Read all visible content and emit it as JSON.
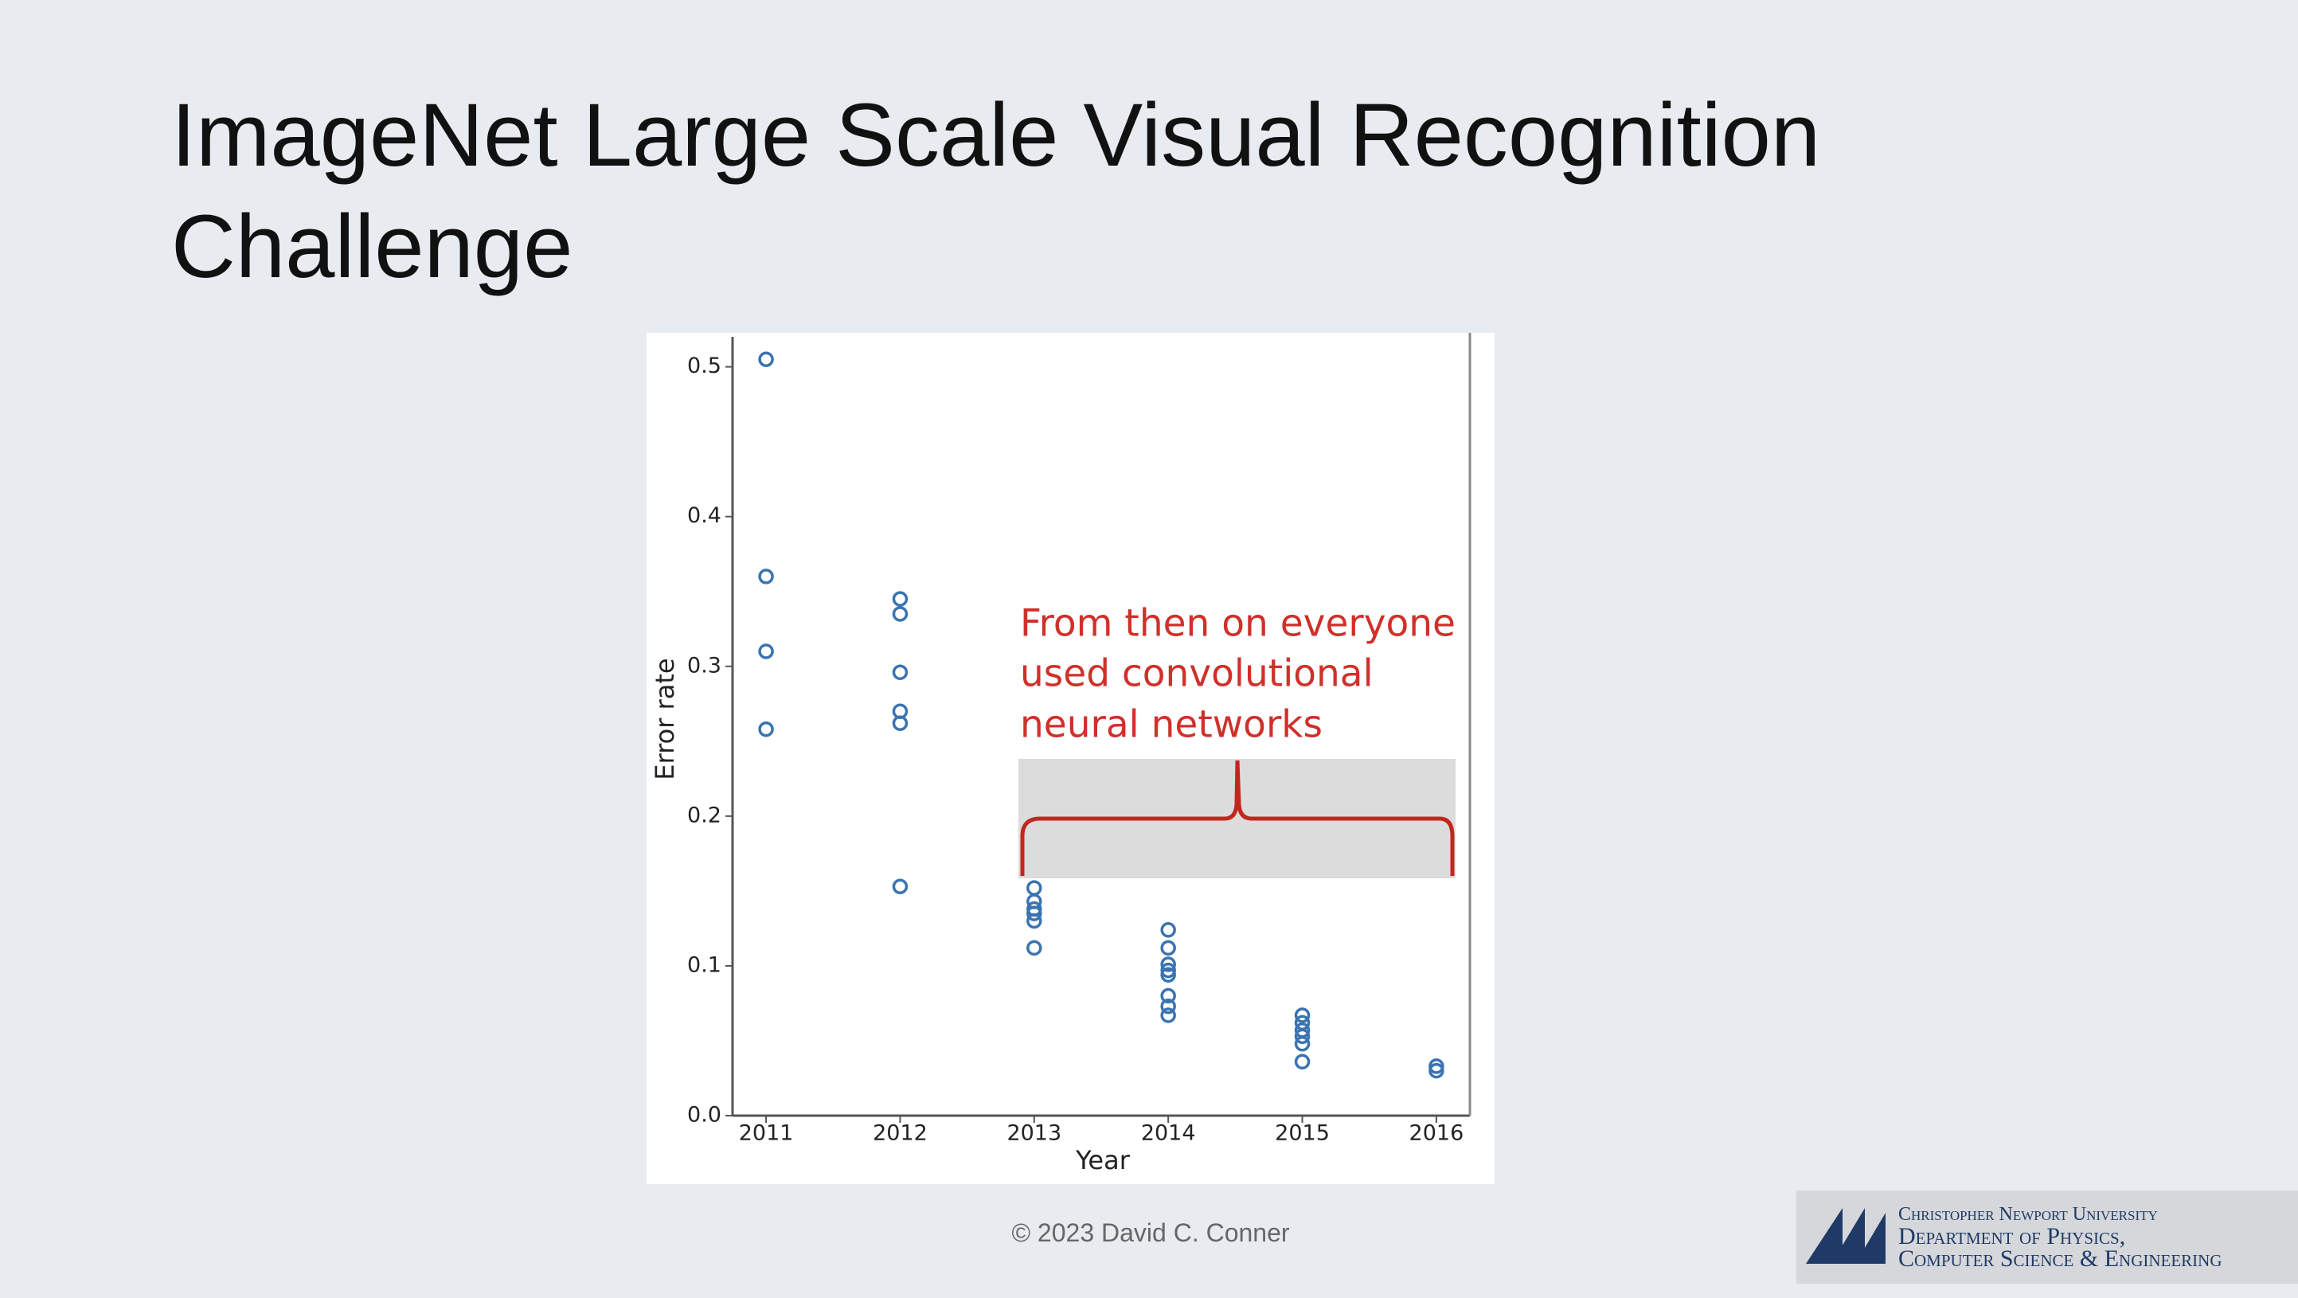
{
  "slide": {
    "title": "ImageNet Large Scale Visual Recognition Challenge",
    "footer": "© 2023 David C. Conner"
  },
  "logo": {
    "lines": [
      "Christopher Newport University",
      "Department of Physics,",
      "Computer Science & Engineering"
    ]
  },
  "chart_data": {
    "type": "scatter",
    "xlabel": "Year",
    "ylabel": "Error rate",
    "annotation": [
      "From then on everyone",
      "used convolutional",
      "neural networks"
    ],
    "series": [
      {
        "color": "#3b73b0",
        "x": [
          2011,
          2011,
          2011,
          2011,
          2012,
          2012,
          2012,
          2012,
          2012,
          2012,
          2013,
          2013,
          2013,
          2013,
          2013,
          2013,
          2014,
          2014,
          2014,
          2014,
          2014,
          2014,
          2014,
          2014,
          2015,
          2015,
          2015,
          2015,
          2015,
          2015,
          2016,
          2016
        ],
        "values": [
          0.505,
          0.36,
          0.31,
          0.258,
          0.345,
          0.335,
          0.296,
          0.27,
          0.262,
          0.153,
          0.152,
          0.143,
          0.138,
          0.135,
          0.13,
          0.112,
          0.124,
          0.112,
          0.101,
          0.097,
          0.094,
          0.08,
          0.073,
          0.067,
          0.067,
          0.062,
          0.057,
          0.053,
          0.048,
          0.036,
          0.033,
          0.03
        ]
      }
    ],
    "xlim": [
      2010.75,
      2016.25
    ],
    "xticks": [
      2011,
      2012,
      2013,
      2014,
      2015,
      2016
    ],
    "ylim": [
      0,
      0.52
    ],
    "yticks": [
      {
        "value": 0,
        "label": "0.0"
      },
      0.1,
      0.2,
      0.3,
      0.4,
      0.5
    ]
  }
}
